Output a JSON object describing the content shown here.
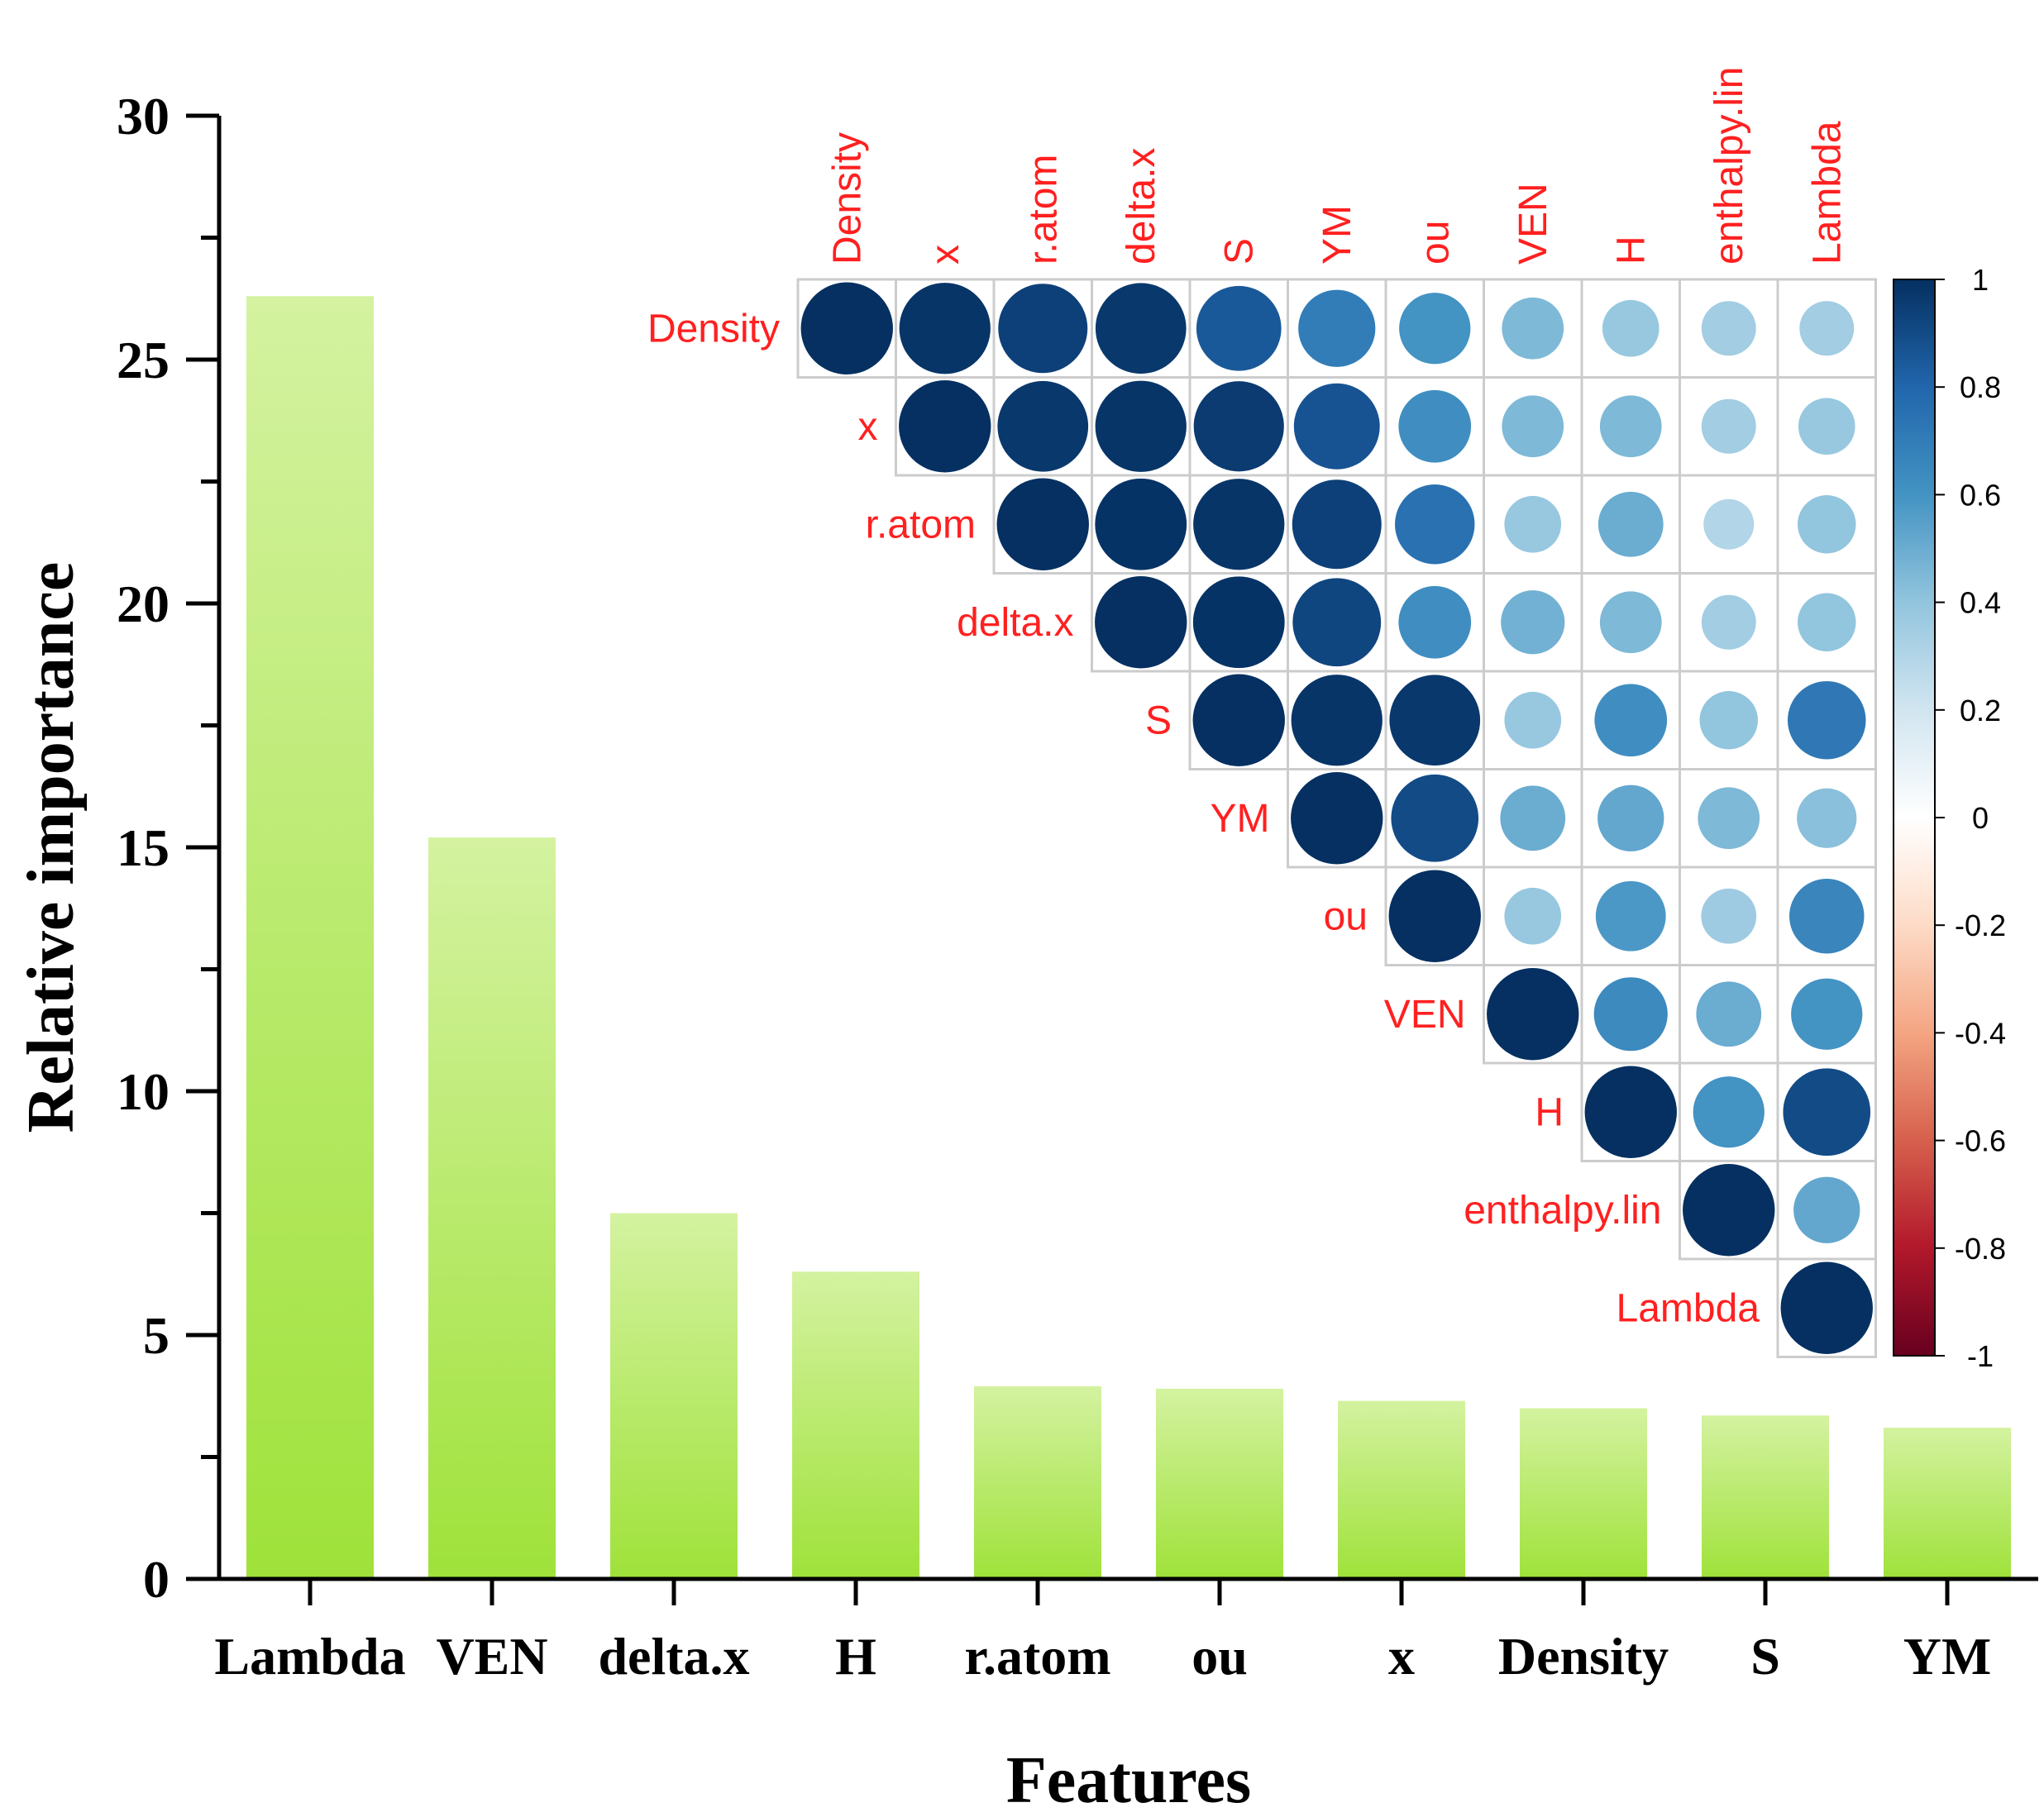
{
  "chart_data": [
    {
      "type": "bar",
      "xlabel": "Features",
      "ylabel": "Relative importance",
      "categories": [
        "Lambda",
        "VEN",
        "delta.x",
        "H",
        "r.atom",
        "ou",
        "x",
        "Density",
        "S",
        "YM"
      ],
      "values": [
        26.3,
        15.2,
        7.5,
        6.3,
        3.95,
        3.9,
        3.65,
        3.5,
        3.35,
        3.1
      ],
      "ylim": [
        0,
        30
      ],
      "yticks": [
        "0",
        "5",
        "10",
        "15",
        "20",
        "25",
        "30"
      ],
      "grid": false,
      "colors": {
        "bar_top": "#d4f2a0",
        "bar_bottom": "#9fe23a"
      }
    },
    {
      "type": "heatmap",
      "subtype": "correlation upper triangle (circles)",
      "variables": [
        "Density",
        "x",
        "r.atom",
        "delta.x",
        "S",
        "YM",
        "ou",
        "VEN",
        "H",
        "enthalpy.lin",
        "Lambda"
      ],
      "matrix": [
        [
          1.0,
          0.98,
          0.94,
          0.97,
          0.85,
          0.7,
          0.6,
          0.45,
          0.38,
          0.35,
          0.35
        ],
        [
          null,
          1.0,
          0.97,
          0.98,
          0.96,
          0.87,
          0.62,
          0.45,
          0.45,
          0.35,
          0.38
        ],
        [
          null,
          null,
          1.0,
          0.99,
          0.98,
          0.94,
          0.75,
          0.38,
          0.5,
          0.3,
          0.4
        ],
        [
          null,
          null,
          null,
          1.0,
          0.99,
          0.92,
          0.62,
          0.48,
          0.45,
          0.35,
          0.4
        ],
        [
          null,
          null,
          null,
          null,
          1.0,
          0.98,
          0.97,
          0.38,
          0.62,
          0.4,
          0.72
        ],
        [
          null,
          null,
          null,
          null,
          null,
          1.0,
          0.9,
          0.5,
          0.52,
          0.45,
          0.42
        ],
        [
          null,
          null,
          null,
          null,
          null,
          null,
          1.0,
          0.38,
          0.58,
          0.36,
          0.66
        ],
        [
          null,
          null,
          null,
          null,
          null,
          null,
          null,
          1.0,
          0.64,
          0.5,
          0.6
        ],
        [
          null,
          null,
          null,
          null,
          null,
          null,
          null,
          null,
          1.0,
          0.6,
          0.9
        ],
        [
          null,
          null,
          null,
          null,
          null,
          null,
          null,
          null,
          null,
          1.0,
          0.52
        ],
        [
          null,
          null,
          null,
          null,
          null,
          null,
          null,
          null,
          null,
          null,
          1.0
        ]
      ],
      "colorbar": {
        "range": [
          -1,
          1
        ],
        "ticks": [
          "1",
          "0.8",
          "0.6",
          "0.4",
          "0.2",
          "0",
          "-0.2",
          "-0.4",
          "-0.6",
          "-0.8",
          "-1"
        ],
        "stops": [
          "#67001f",
          "#b2182b",
          "#d6604d",
          "#f4a582",
          "#fddbc7",
          "#ffffff",
          "#d1e5f0",
          "#92c5de",
          "#4393c3",
          "#2166ac",
          "#053061"
        ]
      },
      "label_color": "#ff2020"
    }
  ]
}
